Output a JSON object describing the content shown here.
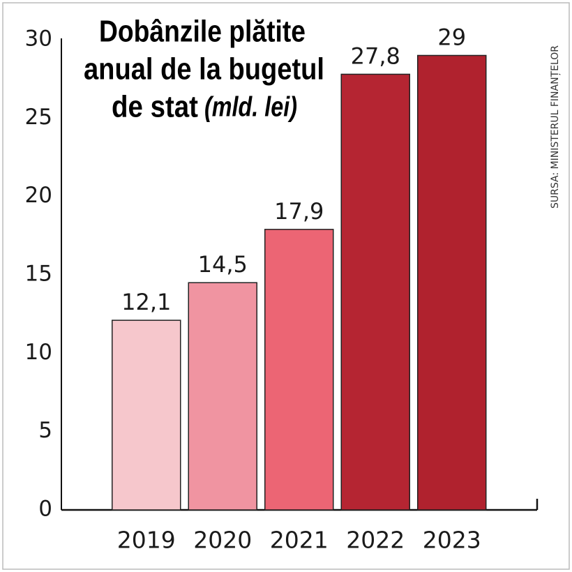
{
  "chart_data": {
    "type": "bar",
    "title": [
      "Dobânzile plătite",
      "anual de la bugetul",
      "de stat"
    ],
    "subtitle": "(mld. lei)",
    "source": "SURSA: MINISTERUL FINANȚELOR",
    "categories": [
      "2019",
      "2020",
      "2021",
      "2022",
      "2023"
    ],
    "values": [
      12.1,
      14.5,
      17.9,
      27.8,
      29
    ],
    "value_labels": [
      "12,1",
      "14,5",
      "17,9",
      "27,8",
      "29"
    ],
    "colors": [
      "#f6c7cc",
      "#f094a1",
      "#ec6574",
      "#b52532",
      "#b0222e"
    ],
    "ylim": [
      0,
      30
    ],
    "yticks": [
      0,
      5,
      10,
      15,
      20,
      25,
      30
    ],
    "grid": false
  }
}
